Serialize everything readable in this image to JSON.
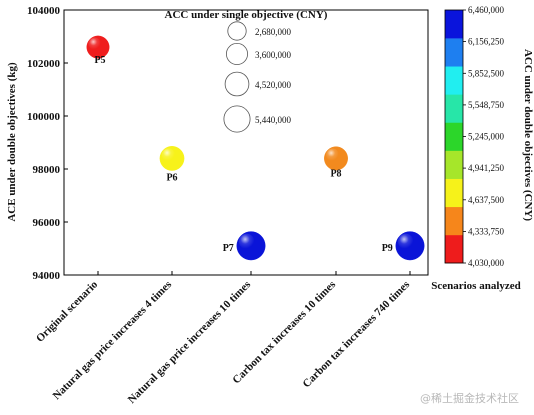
{
  "chart_data": {
    "type": "scatter",
    "ylabel": "ACE under double objectives (kg)",
    "xlabel": "Scenarios analyzed",
    "ylim": [
      94000,
      104000
    ],
    "yticks": [
      "94000",
      "96000",
      "98000",
      "100000",
      "102000",
      "104000"
    ],
    "categories": [
      "Original scenario",
      "Natural gas price increases 4 times",
      "Natural gas price increases 10 times",
      "Carbon tax increases 10 times",
      "Carbon tax increases 740 times"
    ],
    "points": [
      {
        "label": "P5",
        "category": "Original scenario",
        "y": 102600,
        "size": 4030000,
        "color": "#ef1d1d"
      },
      {
        "label": "P6",
        "category": "Natural gas price increases 4 times",
        "y": 98400,
        "size": 4650000,
        "color": "#f7f21a"
      },
      {
        "label": "P7",
        "category": "Natural gas price increases 10 times",
        "y": 95100,
        "size": 6460000,
        "color": "#0a14d8"
      },
      {
        "label": "P8",
        "category": "Carbon tax increases 10 times",
        "y": 98400,
        "size": 4330000,
        "color": "#f28a1e"
      },
      {
        "label": "P9",
        "category": "Carbon tax increases 740 times",
        "y": 95100,
        "size": 6460000,
        "color": "#0a14d8"
      }
    ],
    "size_legend": {
      "title": "ACC under single objective (CNY)",
      "entries": [
        {
          "value": 2680000,
          "label": "2,680,000"
        },
        {
          "value": 3600000,
          "label": "3,600,000"
        },
        {
          "value": 4520000,
          "label": "4,520,000"
        },
        {
          "value": 5440000,
          "label": "5,440,000"
        }
      ]
    },
    "colorbar": {
      "title": "ACC under double objectives (CNY)",
      "ticks": [
        "4,030,000",
        "4,333,750",
        "4,637,500",
        "4,941,250",
        "5,245,000",
        "5,548,750",
        "5,852,500",
        "6,156,250",
        "6,460,000"
      ],
      "colors": [
        "#ee1c1c",
        "#f6861b",
        "#f6f21a",
        "#a6e62a",
        "#2cd62a",
        "#27e6a8",
        "#21eef0",
        "#1e7ff0",
        "#0a14dc"
      ]
    },
    "grid": false,
    "legend_position": "top-center"
  },
  "watermark": "@稀土掘金技术社区"
}
